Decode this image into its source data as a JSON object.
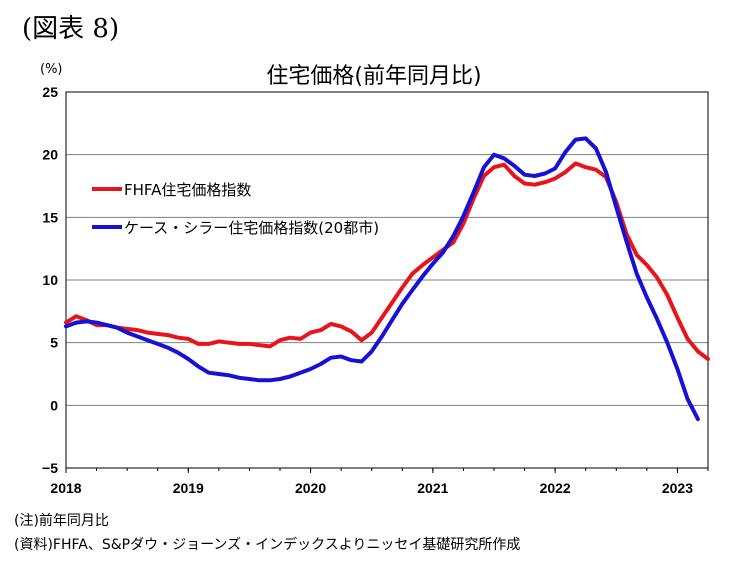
{
  "figure_label": "(図表 8)",
  "notes": [
    "(注)前年同月比",
    "(資料)FHFA、S&Pダウ・ジョーンズ・インデックスよりニッセイ基礎研究所作成"
  ],
  "colors": {
    "fhfa": "#e8141b",
    "case_shiller": "#1512d6",
    "grid": "#808080"
  },
  "chart_data": {
    "type": "line",
    "title": "住宅価格(前年同月比)",
    "ylabel": "(%)",
    "ylim": [
      -5,
      25
    ],
    "yticks": [
      "25",
      "20",
      "15",
      "10",
      "5",
      "0",
      "−5"
    ],
    "xlim": [
      2018.0,
      2023.25
    ],
    "xticks": [
      "2018",
      "2019",
      "2020",
      "2021",
      "2022",
      "2023"
    ],
    "grid": true,
    "legend_position": "upper-left",
    "series": [
      {
        "name": "FHFA住宅価格指数",
        "color_key": "fhfa",
        "points": [
          [
            2018.0,
            6.6
          ],
          [
            2018.083,
            7.1
          ],
          [
            2018.167,
            6.8
          ],
          [
            2018.25,
            6.4
          ],
          [
            2018.333,
            6.4
          ],
          [
            2018.417,
            6.2
          ],
          [
            2018.5,
            6.1
          ],
          [
            2018.583,
            6.0
          ],
          [
            2018.667,
            5.8
          ],
          [
            2018.75,
            5.7
          ],
          [
            2018.833,
            5.6
          ],
          [
            2018.917,
            5.4
          ],
          [
            2019.0,
            5.3
          ],
          [
            2019.083,
            4.9
          ],
          [
            2019.167,
            4.9
          ],
          [
            2019.25,
            5.1
          ],
          [
            2019.333,
            5.0
          ],
          [
            2019.417,
            4.9
          ],
          [
            2019.5,
            4.9
          ],
          [
            2019.583,
            4.8
          ],
          [
            2019.667,
            4.7
          ],
          [
            2019.75,
            5.2
          ],
          [
            2019.833,
            5.4
          ],
          [
            2019.917,
            5.3
          ],
          [
            2020.0,
            5.8
          ],
          [
            2020.083,
            6.0
          ],
          [
            2020.167,
            6.5
          ],
          [
            2020.25,
            6.3
          ],
          [
            2020.333,
            5.9
          ],
          [
            2020.417,
            5.2
          ],
          [
            2020.5,
            5.8
          ],
          [
            2020.583,
            7.0
          ],
          [
            2020.667,
            8.2
          ],
          [
            2020.75,
            9.4
          ],
          [
            2020.833,
            10.5
          ],
          [
            2020.917,
            11.2
          ],
          [
            2021.0,
            11.8
          ],
          [
            2021.083,
            12.4
          ],
          [
            2021.167,
            13.0
          ],
          [
            2021.25,
            14.5
          ],
          [
            2021.333,
            16.5
          ],
          [
            2021.417,
            18.3
          ],
          [
            2021.5,
            19.0
          ],
          [
            2021.583,
            19.2
          ],
          [
            2021.667,
            18.3
          ],
          [
            2021.75,
            17.7
          ],
          [
            2021.833,
            17.6
          ],
          [
            2021.917,
            17.8
          ],
          [
            2022.0,
            18.1
          ],
          [
            2022.083,
            18.6
          ],
          [
            2022.167,
            19.3
          ],
          [
            2022.25,
            19.0
          ],
          [
            2022.333,
            18.8
          ],
          [
            2022.417,
            18.2
          ],
          [
            2022.5,
            16.2
          ],
          [
            2022.583,
            13.7
          ],
          [
            2022.667,
            12.0
          ],
          [
            2022.75,
            11.2
          ],
          [
            2022.833,
            10.2
          ],
          [
            2022.917,
            8.8
          ],
          [
            2023.0,
            7.0
          ],
          [
            2023.083,
            5.3
          ],
          [
            2023.167,
            4.3
          ],
          [
            2023.25,
            3.7
          ]
        ]
      },
      {
        "name": "ケース・シラー住宅価格指数(20都市)",
        "color_key": "case_shiller",
        "points": [
          [
            2018.0,
            6.3
          ],
          [
            2018.083,
            6.6
          ],
          [
            2018.167,
            6.7
          ],
          [
            2018.25,
            6.6
          ],
          [
            2018.333,
            6.4
          ],
          [
            2018.417,
            6.2
          ],
          [
            2018.5,
            5.8
          ],
          [
            2018.583,
            5.5
          ],
          [
            2018.667,
            5.2
          ],
          [
            2018.75,
            4.9
          ],
          [
            2018.833,
            4.6
          ],
          [
            2018.917,
            4.2
          ],
          [
            2019.0,
            3.7
          ],
          [
            2019.083,
            3.1
          ],
          [
            2019.167,
            2.6
          ],
          [
            2019.25,
            2.5
          ],
          [
            2019.333,
            2.4
          ],
          [
            2019.417,
            2.2
          ],
          [
            2019.5,
            2.1
          ],
          [
            2019.583,
            2.0
          ],
          [
            2019.667,
            2.0
          ],
          [
            2019.75,
            2.1
          ],
          [
            2019.833,
            2.3
          ],
          [
            2019.917,
            2.6
          ],
          [
            2020.0,
            2.9
          ],
          [
            2020.083,
            3.3
          ],
          [
            2020.167,
            3.8
          ],
          [
            2020.25,
            3.9
          ],
          [
            2020.333,
            3.6
          ],
          [
            2020.417,
            3.5
          ],
          [
            2020.5,
            4.3
          ],
          [
            2020.583,
            5.5
          ],
          [
            2020.667,
            6.8
          ],
          [
            2020.75,
            8.1
          ],
          [
            2020.833,
            9.2
          ],
          [
            2020.917,
            10.3
          ],
          [
            2021.0,
            11.3
          ],
          [
            2021.083,
            12.2
          ],
          [
            2021.167,
            13.5
          ],
          [
            2021.25,
            15.1
          ],
          [
            2021.333,
            17.0
          ],
          [
            2021.417,
            19.0
          ],
          [
            2021.5,
            20.0
          ],
          [
            2021.583,
            19.7
          ],
          [
            2021.667,
            19.1
          ],
          [
            2021.75,
            18.4
          ],
          [
            2021.833,
            18.3
          ],
          [
            2021.917,
            18.5
          ],
          [
            2022.0,
            18.9
          ],
          [
            2022.083,
            20.2
          ],
          [
            2022.167,
            21.2
          ],
          [
            2022.25,
            21.3
          ],
          [
            2022.333,
            20.5
          ],
          [
            2022.417,
            18.6
          ],
          [
            2022.5,
            15.8
          ],
          [
            2022.583,
            13.1
          ],
          [
            2022.667,
            10.5
          ],
          [
            2022.75,
            8.6
          ],
          [
            2022.833,
            6.9
          ],
          [
            2022.917,
            5.0
          ],
          [
            2023.0,
            2.9
          ],
          [
            2023.083,
            0.5
          ],
          [
            2023.167,
            -1.1
          ]
        ]
      }
    ]
  }
}
